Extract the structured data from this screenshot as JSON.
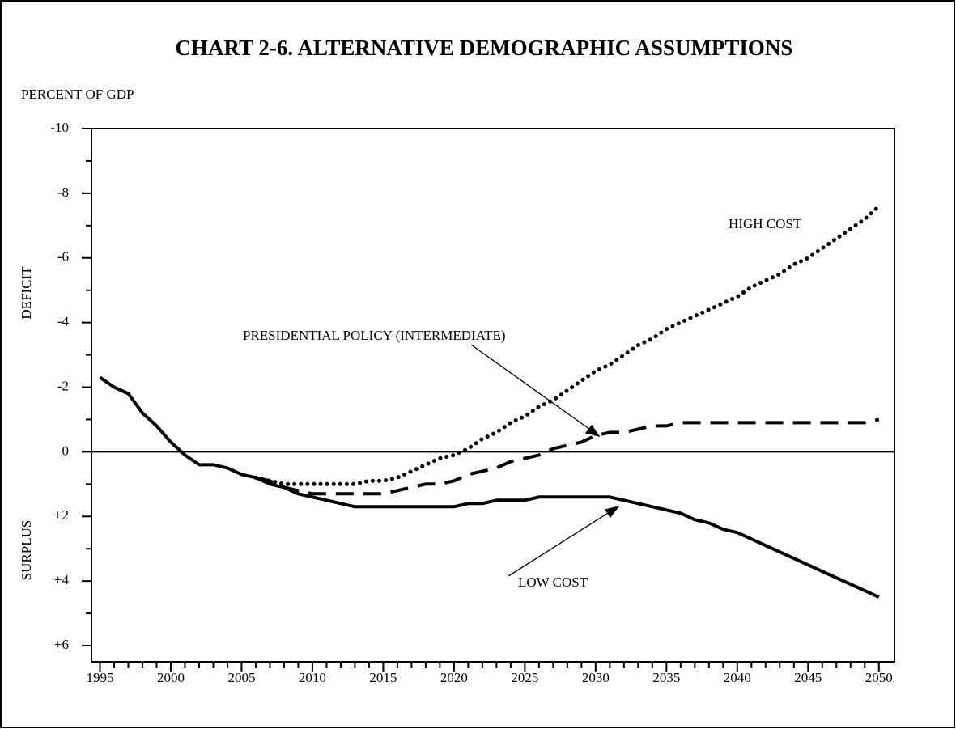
{
  "chart_data": {
    "type": "line",
    "title": "CHART 2-6.  ALTERNATIVE  DEMOGRAPHIC  ASSUMPTIONS",
    "y_label": "PERCENT OF GDP",
    "y_upper_label": "DEFICIT",
    "y_lower_label": "SURPLUS",
    "x": [
      1995,
      1996,
      1997,
      1998,
      1999,
      2000,
      2001,
      2002,
      2003,
      2004,
      2005,
      2006,
      2007,
      2008,
      2009,
      2010,
      2011,
      2012,
      2013,
      2014,
      2015,
      2016,
      2017,
      2018,
      2019,
      2020,
      2021,
      2022,
      2023,
      2024,
      2025,
      2026,
      2027,
      2028,
      2029,
      2030,
      2031,
      2032,
      2033,
      2034,
      2035,
      2036,
      2037,
      2038,
      2039,
      2040,
      2041,
      2042,
      2043,
      2044,
      2045,
      2046,
      2047,
      2048,
      2049,
      2050
    ],
    "series": [
      {
        "name": "LOW COST",
        "color": "#000000",
        "dash": "solid",
        "values": [
          -2.3,
          -2.0,
          -1.8,
          -1.2,
          -0.8,
          -0.3,
          0.1,
          0.4,
          0.4,
          0.5,
          0.7,
          0.8,
          1.0,
          1.1,
          1.3,
          1.4,
          1.5,
          1.6,
          1.7,
          1.7,
          1.7,
          1.7,
          1.7,
          1.7,
          1.7,
          1.7,
          1.6,
          1.6,
          1.5,
          1.5,
          1.5,
          1.4,
          1.4,
          1.4,
          1.4,
          1.4,
          1.4,
          1.5,
          1.6,
          1.7,
          1.8,
          1.9,
          2.1,
          2.2,
          2.4,
          2.5,
          2.7,
          2.9,
          3.1,
          3.3,
          3.5,
          3.7,
          3.9,
          4.1,
          4.3,
          4.5
        ]
      },
      {
        "name": "PRESIDENTIAL POLICY (INTERMEDIATE)",
        "color": "#000000",
        "dash": "dashed",
        "values": [
          null,
          null,
          null,
          null,
          null,
          null,
          null,
          null,
          null,
          null,
          null,
          0.8,
          0.9,
          1.1,
          1.2,
          1.3,
          1.3,
          1.3,
          1.3,
          1.3,
          1.3,
          1.2,
          1.1,
          1.0,
          1.0,
          0.9,
          0.7,
          0.6,
          0.5,
          0.3,
          0.2,
          0.1,
          -0.1,
          -0.2,
          -0.3,
          -0.5,
          -0.6,
          -0.6,
          -0.7,
          -0.8,
          -0.8,
          -0.9,
          -0.9,
          -0.9,
          -0.9,
          -0.9,
          -0.9,
          -0.9,
          -0.9,
          -0.9,
          -0.9,
          -0.9,
          -0.9,
          -0.9,
          -0.9,
          -1.0
        ]
      },
      {
        "name": "HIGH COST",
        "color": "#000000",
        "dash": "dotted",
        "values": [
          null,
          null,
          null,
          null,
          null,
          null,
          null,
          null,
          null,
          null,
          null,
          0.8,
          0.9,
          1.0,
          1.0,
          1.0,
          1.0,
          1.0,
          1.0,
          0.9,
          0.9,
          0.8,
          0.6,
          0.4,
          0.2,
          0.1,
          -0.1,
          -0.4,
          -0.6,
          -0.9,
          -1.1,
          -1.4,
          -1.6,
          -1.9,
          -2.2,
          -2.5,
          -2.7,
          -3.0,
          -3.3,
          -3.5,
          -3.8,
          -4.0,
          -4.2,
          -4.4,
          -4.6,
          -4.8,
          -5.1,
          -5.3,
          -5.5,
          -5.8,
          -6.0,
          -6.3,
          -6.6,
          -6.9,
          -7.2,
          -7.6
        ]
      }
    ],
    "xlim": [
      1994.4,
      2051.1
    ],
    "xticks": [
      1995,
      2000,
      2005,
      2010,
      2015,
      2020,
      2025,
      2030,
      2035,
      2040,
      2045,
      2050
    ],
    "ylim": [
      6.5,
      -10
    ],
    "yticks": [
      -10,
      -8,
      -6,
      -4,
      -2,
      0,
      {
        "value": 2,
        "label": "+2"
      },
      {
        "value": 4,
        "label": "+4"
      },
      {
        "value": 6,
        "label": "+6"
      }
    ],
    "grid": false
  }
}
